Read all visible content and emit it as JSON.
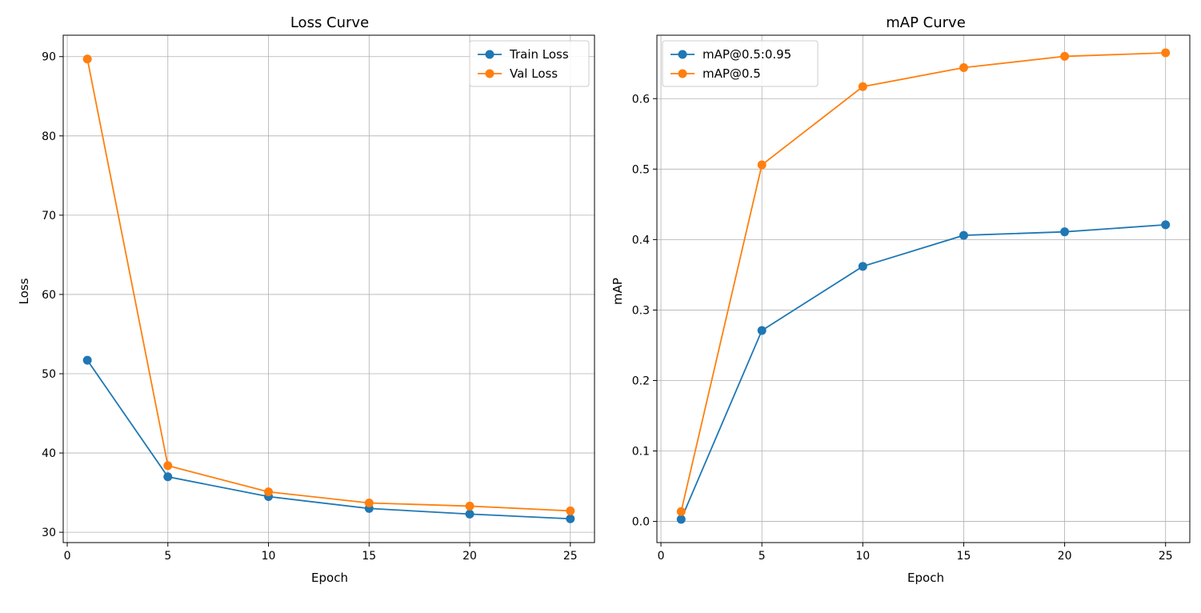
{
  "chart_data": [
    {
      "type": "line",
      "title": "Loss Curve",
      "xlabel": "Epoch",
      "ylabel": "Loss",
      "x": [
        1,
        5,
        10,
        15,
        20,
        25
      ],
      "series": [
        {
          "name": "Train Loss",
          "color": "#1f77b4",
          "values": [
            51.7,
            37.0,
            34.5,
            33.0,
            32.3,
            31.7
          ]
        },
        {
          "name": "Val Loss",
          "color": "#ff7f0e",
          "values": [
            89.7,
            38.4,
            35.1,
            33.7,
            33.3,
            32.7
          ]
        }
      ],
      "xlim": [
        -0.2,
        26.2
      ],
      "ylim": [
        28.7,
        92.7
      ],
      "xticks": [
        0,
        5,
        10,
        15,
        20,
        25
      ],
      "yticks": [
        30,
        40,
        50,
        60,
        70,
        80,
        90
      ],
      "grid": true,
      "legend": "upper right",
      "marker": "circle"
    },
    {
      "type": "line",
      "title": "mAP Curve",
      "xlabel": "Epoch",
      "ylabel": "mAP",
      "x": [
        1,
        5,
        10,
        15,
        20,
        25
      ],
      "series": [
        {
          "name": "mAP@0.5:0.95",
          "color": "#1f77b4",
          "values": [
            0.003,
            0.271,
            0.362,
            0.406,
            0.411,
            0.421
          ]
        },
        {
          "name": "mAP@0.5",
          "color": "#ff7f0e",
          "values": [
            0.014,
            0.506,
            0.617,
            0.644,
            0.66,
            0.665
          ]
        }
      ],
      "xlim": [
        -0.2,
        26.2
      ],
      "ylim": [
        -0.03,
        0.69
      ],
      "xticks": [
        0,
        5,
        10,
        15,
        20,
        25
      ],
      "yticks": [
        0.0,
        0.1,
        0.2,
        0.3,
        0.4,
        0.5,
        0.6
      ],
      "yticklabels": [
        "0.0",
        "0.1",
        "0.2",
        "0.3",
        "0.4",
        "0.5",
        "0.6"
      ],
      "grid": true,
      "legend": "upper left",
      "marker": "circle"
    }
  ]
}
